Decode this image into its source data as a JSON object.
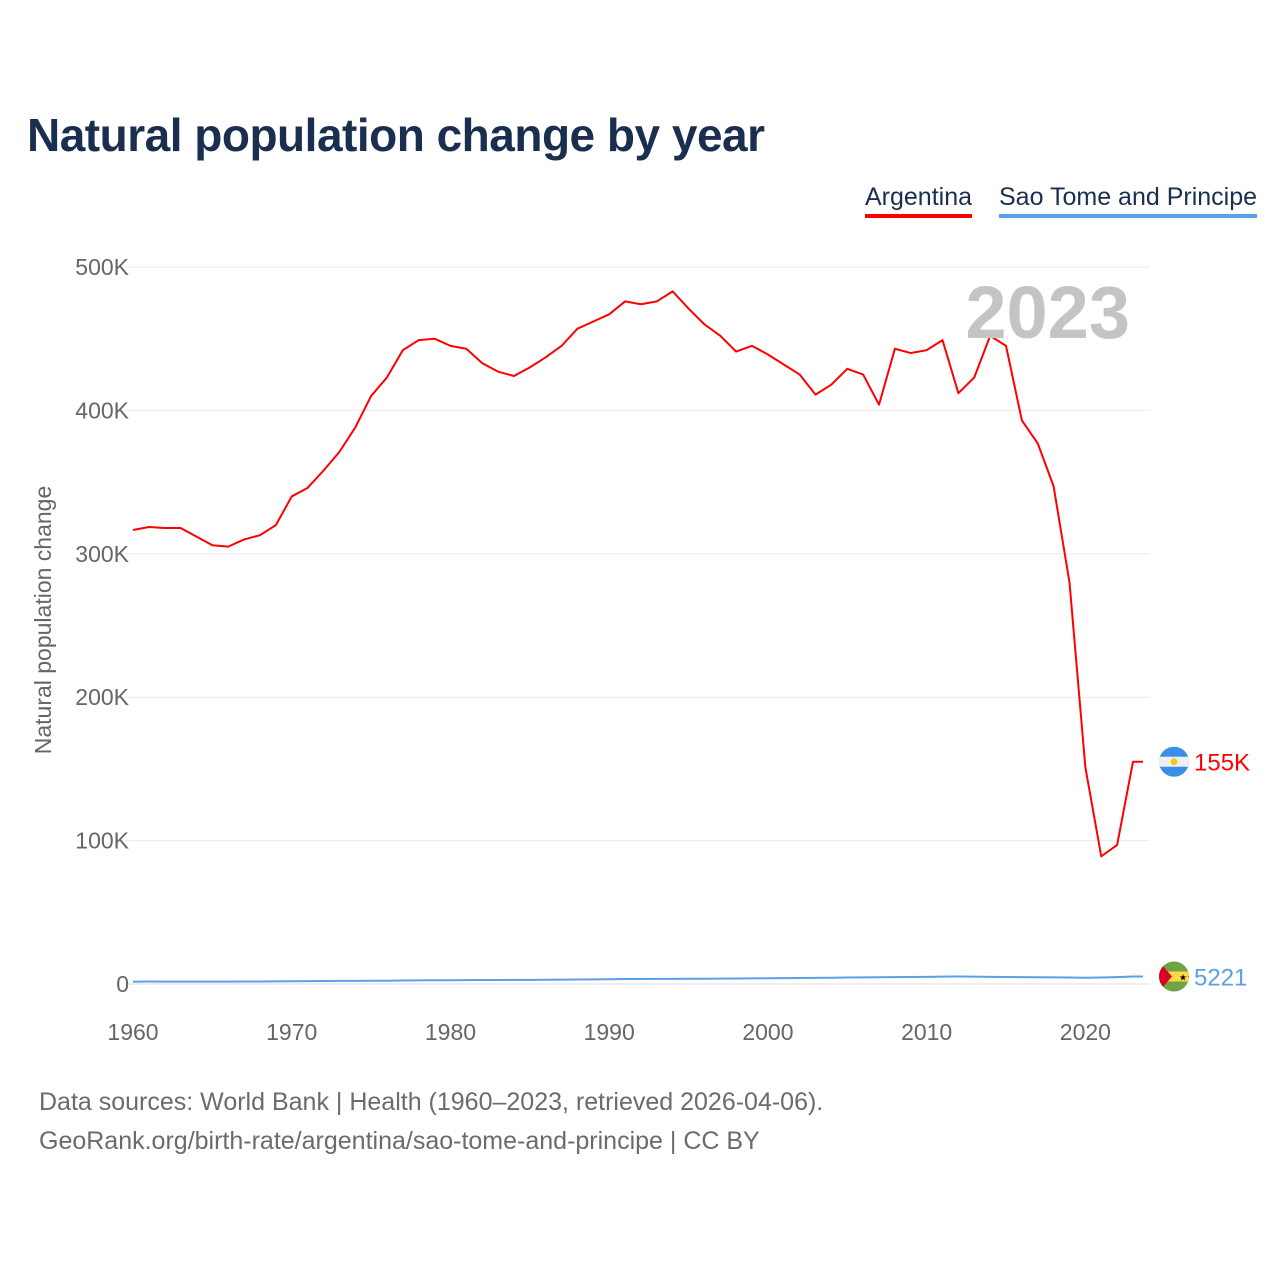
{
  "title": "Natural population change by year",
  "legend": [
    {
      "label": "Argentina",
      "color": "#ff0000"
    },
    {
      "label": "Sao Tome and Principe",
      "color": "#5aa0e6"
    }
  ],
  "year_display": "2023",
  "footer": {
    "line1": "Data sources: World Bank | Health (1960–2023, retrieved 2026-04-06).",
    "line2": "GeoRank.org/birth-rate/argentina/sao-tome-and-principe | CC BY"
  },
  "chart_data": {
    "type": "line",
    "title": "Natural population change by year",
    "xlabel": "",
    "ylabel": "Natural population change",
    "xlim": [
      1960,
      2023
    ],
    "ylim": [
      0,
      500000
    ],
    "x_ticks": [
      1960,
      1970,
      1980,
      1990,
      2000,
      2010,
      2020
    ],
    "x_tick_labels": [
      "1960",
      "1970",
      "1980",
      "1990",
      "2000",
      "2010",
      "2020"
    ],
    "y_ticks": [
      0,
      100000,
      200000,
      300000,
      400000,
      500000
    ],
    "y_tick_labels": [
      "0",
      "100K",
      "200K",
      "300K",
      "400K",
      "500K"
    ],
    "grid": true,
    "legend_position": "top-right",
    "x": [
      1960,
      1961,
      1962,
      1963,
      1964,
      1965,
      1966,
      1967,
      1968,
      1969,
      1970,
      1971,
      1972,
      1973,
      1974,
      1975,
      1976,
      1977,
      1978,
      1979,
      1980,
      1981,
      1982,
      1983,
      1984,
      1985,
      1986,
      1987,
      1988,
      1989,
      1990,
      1991,
      1992,
      1993,
      1994,
      1995,
      1996,
      1997,
      1998,
      1999,
      2000,
      2001,
      2002,
      2003,
      2004,
      2005,
      2006,
      2007,
      2008,
      2009,
      2010,
      2011,
      2012,
      2013,
      2014,
      2015,
      2016,
      2017,
      2018,
      2019,
      2020,
      2021,
      2022,
      2023
    ],
    "series": [
      {
        "name": "Argentina",
        "color": "#ff0000",
        "end_label": "155K",
        "values": [
          316600,
          318700,
          318000,
          318000,
          312000,
          306000,
          305000,
          310000,
          313000,
          320000,
          340000,
          346000,
          358000,
          371000,
          388000,
          410000,
          423000,
          442000,
          449000,
          450000,
          445000,
          443000,
          433000,
          427000,
          424000,
          430000,
          437000,
          445000,
          457000,
          462000,
          467000,
          476000,
          474000,
          476000,
          483000,
          471000,
          460000,
          452000,
          441000,
          445000,
          439000,
          432000,
          425000,
          411000,
          418000,
          429000,
          425000,
          404000,
          443000,
          440000,
          442000,
          449000,
          412000,
          423000,
          452000,
          445000,
          393000,
          377000,
          347000,
          280000,
          151000,
          89000,
          97000,
          155000
        ]
      },
      {
        "name": "Sao Tome and Principe",
        "color": "#5aa0e6",
        "end_label": "5221",
        "values": [
          1600,
          1700,
          1650,
          1650,
          1650,
          1650,
          1650,
          1700,
          1750,
          1800,
          1900,
          2000,
          2100,
          2150,
          2200,
          2250,
          2300,
          2400,
          2500,
          2600,
          2650,
          2700,
          2750,
          2800,
          2850,
          2900,
          2950,
          3050,
          3150,
          3250,
          3350,
          3450,
          3500,
          3550,
          3600,
          3650,
          3700,
          3750,
          3800,
          3900,
          4000,
          4100,
          4200,
          4300,
          4400,
          4500,
          4600,
          4700,
          4800,
          4900,
          5000,
          5100,
          5200,
          5100,
          5000,
          4900,
          4800,
          4700,
          4600,
          4500,
          4400,
          4500,
          4800,
          5221
        ]
      }
    ]
  }
}
